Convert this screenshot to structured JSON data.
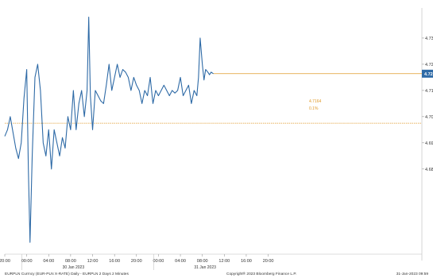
{
  "chart_data": {
    "type": "line",
    "title": "",
    "xlabel": "",
    "ylabel": "",
    "ylim": [
      4.755,
      4.745
    ],
    "y_ticks": [
      {
        "value": 4.73,
        "label": "4.73"
      },
      {
        "value": 4.72,
        "label": "4.72"
      },
      {
        "value": 4.71,
        "label": "4.71"
      },
      {
        "value": 4.7,
        "label": "4.70"
      },
      {
        "value": 4.69,
        "label": "4.69"
      },
      {
        "value": 4.68,
        "label": "4.68"
      }
    ],
    "x_range": [
      0,
      76
    ],
    "x_ticks": [
      {
        "hour": 0,
        "label": "20:00"
      },
      {
        "hour": 4,
        "label": "00:00"
      },
      {
        "hour": 8,
        "label": "04:00"
      },
      {
        "hour": 12,
        "label": "08:00"
      },
      {
        "hour": 16,
        "label": "12:00"
      },
      {
        "hour": 20,
        "label": "16:00"
      },
      {
        "hour": 24,
        "label": "20:00"
      },
      {
        "hour": 28,
        "label": "00:00"
      },
      {
        "hour": 32,
        "label": "04:00"
      },
      {
        "hour": 36,
        "label": "08:00"
      },
      {
        "hour": 40,
        "label": "12:00"
      },
      {
        "hour": 44,
        "label": "16:00"
      },
      {
        "hour": 48,
        "label": "20:00"
      }
    ],
    "date_labels": [
      {
        "hour": 12.5,
        "label": "30 Jan 2023"
      },
      {
        "hour": 36.5,
        "label": "31 Jan 2023"
      }
    ],
    "series": [
      {
        "name": "",
        "color": "#2e6aa6",
        "x": [
          0,
          0.5,
          1,
          1.5,
          2,
          2.5,
          3,
          3.5,
          4,
          4.3,
          4.6,
          5,
          5.5,
          6,
          6.5,
          7,
          7.5,
          8,
          8.5,
          9,
          9.5,
          10,
          10.5,
          11,
          11.5,
          12,
          12.5,
          13,
          13.5,
          14,
          14.5,
          15,
          15.3,
          15.6,
          16,
          16.5,
          17,
          17.5,
          18,
          18.5,
          19,
          19.5,
          20,
          20.5,
          21,
          21.5,
          22,
          22.5,
          23,
          23.5,
          24,
          24.5,
          25,
          25.5,
          26,
          26.5,
          27,
          27.5,
          28,
          28.5,
          29,
          29.5,
          30,
          30.5,
          31,
          31.5,
          32,
          32.5,
          33,
          33.5,
          34,
          34.5,
          35,
          35.3,
          35.6,
          36,
          36.3,
          36.6,
          37,
          37.3,
          37.6,
          38
        ],
        "values": [
          4.6925,
          4.695,
          4.7,
          4.694,
          4.688,
          4.684,
          4.69,
          4.707,
          4.718,
          4.68,
          4.652,
          4.685,
          4.715,
          4.72,
          4.71,
          4.69,
          4.685,
          4.695,
          4.68,
          4.695,
          4.69,
          4.685,
          4.692,
          4.688,
          4.7,
          4.695,
          4.71,
          4.695,
          4.705,
          4.71,
          4.7,
          4.71,
          4.738,
          4.708,
          4.695,
          4.71,
          4.708,
          4.706,
          4.705,
          4.712,
          4.72,
          4.71,
          4.715,
          4.72,
          4.715,
          4.718,
          4.717,
          4.715,
          4.71,
          4.715,
          4.712,
          4.71,
          4.705,
          4.71,
          4.708,
          4.715,
          4.705,
          4.71,
          4.708,
          4.71,
          4.712,
          4.71,
          4.708,
          4.71,
          4.709,
          4.71,
          4.715,
          4.708,
          4.71,
          4.712,
          4.705,
          4.71,
          4.708,
          4.715,
          4.73,
          4.72,
          4.714,
          4.718,
          4.717,
          4.716,
          4.717,
          4.7164
        ]
      }
    ],
    "annotations": {
      "last_value_tag": "4.72",
      "last_value_line": 4.7164,
      "reference_line": 4.6975,
      "label_value": "4.7164",
      "label_change": "0.1%"
    },
    "footer": {
      "left": "EURPLN Currncy (EUR-PLN X-RATE) Daily  -  EURPLN 2 Days 2 Minutes",
      "center": "Copyright® 2023 Bloomberg Finance L.P.",
      "right": "31-Jan-2023 09:59"
    },
    "colors": {
      "line": "#2e6aa6",
      "reference": "#e09a2a",
      "grid": "#d9d9d9",
      "tag": "#2e6aa6"
    }
  }
}
